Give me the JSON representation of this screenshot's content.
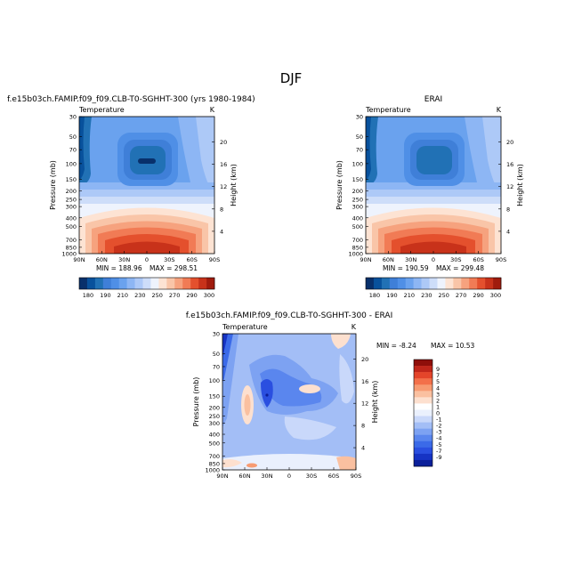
{
  "page": {
    "title": "DJF"
  },
  "colors": {
    "scale": [
      "#08306b",
      "#08519c",
      "#2171b5",
      "#3f7fd8",
      "#4f8fe6",
      "#6aa2ee",
      "#8db6f4",
      "#adc9f7",
      "#cdddf9",
      "#eef3fd",
      "#fde3d3",
      "#f9c5a8",
      "#f6a27e",
      "#f17b55",
      "#e4502d",
      "#c8321a",
      "#a01b0d"
    ],
    "diff": [
      "#0b1f9a",
      "#1633c4",
      "#2a4fe0",
      "#3b6ae8",
      "#5a86ee",
      "#7da2f2",
      "#a3bef6",
      "#c9d8fa",
      "#eaf0fd",
      "#ffffff",
      "#fde0cf",
      "#fac0a0",
      "#f79b72",
      "#f3704a",
      "#e4452a",
      "#c0261a",
      "#8f0f0a"
    ]
  },
  "chart_data": [
    {
      "type": "heatmap",
      "id": "model",
      "title": "f.e15b03ch.FAMIP.f09_f09.CLB-T0-SGHHT-300 (yrs 1980-1984)",
      "left_label": "Temperature",
      "right_label": "K",
      "ylabel": "Pressure (mb)",
      "ylabel_right": "Height (km)",
      "x_ticks": [
        "90N",
        "60N",
        "30N",
        "0",
        "30S",
        "60S",
        "90S"
      ],
      "y_ticks": [
        "30",
        "50",
        "70",
        "100",
        "150",
        "200",
        "250",
        "300",
        "400",
        "500",
        "700",
        "850",
        "1000"
      ],
      "y_ticks_right": [
        "20",
        "16",
        "12",
        "8",
        "4"
      ],
      "log_scale_y": true,
      "min_label": "MIN = 188.96",
      "max_label": "MAX = 298.51",
      "min": 188.96,
      "max": 298.51,
      "colorbar_labels": [
        "180",
        "190",
        "210",
        "230",
        "250",
        "270",
        "290",
        "300"
      ]
    },
    {
      "type": "heatmap",
      "id": "obs",
      "title": "ERAI",
      "left_label": "Temperature",
      "right_label": "K",
      "ylabel": "Pressure (mb)",
      "ylabel_right": "Height (km)",
      "x_ticks": [
        "90N",
        "60N",
        "30N",
        "0",
        "30S",
        "60S",
        "90S"
      ],
      "y_ticks": [
        "30",
        "50",
        "70",
        "100",
        "150",
        "200",
        "250",
        "300",
        "400",
        "500",
        "700",
        "850",
        "1000"
      ],
      "y_ticks_right": [
        "20",
        "16",
        "12",
        "8",
        "4"
      ],
      "log_scale_y": true,
      "min_label": "MIN = 190.59",
      "max_label": "MAX = 299.48",
      "min": 190.59,
      "max": 299.48,
      "colorbar_labels": [
        "180",
        "190",
        "210",
        "230",
        "250",
        "270",
        "290",
        "300"
      ]
    },
    {
      "type": "heatmap",
      "id": "diff",
      "title": "f.e15b03ch.FAMIP.f09_f09.CLB-T0-SGHHT-300 - ERAI",
      "left_label": "Temperature",
      "right_label": "K",
      "ylabel": "Pressure (mb)",
      "ylabel_right": "Height (km)",
      "x_ticks": [
        "90N",
        "60N",
        "30N",
        "0",
        "30S",
        "60S",
        "90S"
      ],
      "y_ticks": [
        "30",
        "50",
        "70",
        "100",
        "150",
        "200",
        "250",
        "300",
        "400",
        "500",
        "700",
        "850",
        "1000"
      ],
      "y_ticks_right": [
        "20",
        "16",
        "12",
        "8",
        "4"
      ],
      "log_scale_y": true,
      "min_label": "MIN = -8.24",
      "max_label": "MAX = 10.53",
      "min": -8.24,
      "max": 10.53,
      "colorbar_labels": [
        "9",
        "7",
        "5",
        "4",
        "3",
        "2",
        "1",
        "0",
        "-1",
        "-2",
        "-3",
        "-4",
        "-5",
        "-7",
        "-9"
      ]
    }
  ]
}
